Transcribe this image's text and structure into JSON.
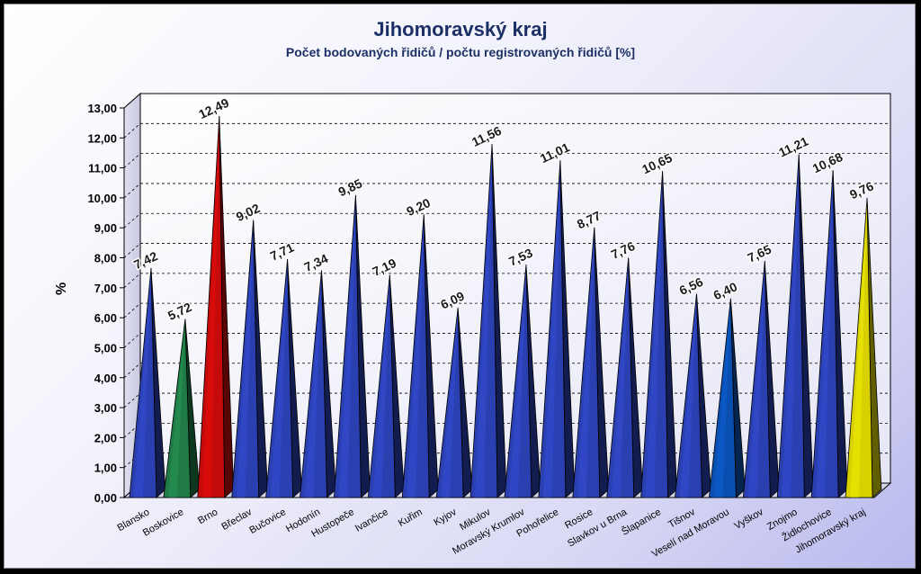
{
  "chart_data": {
    "type": "bar",
    "title": "Jihomoravský kraj",
    "subtitle": "Počet bodovaných řidičů / počtu registrovaných řidičů [%]",
    "ylabel": "%",
    "xlabel": "",
    "ylim": [
      0,
      13
    ],
    "yticks": [
      "0,00",
      "1,00",
      "2,00",
      "3,00",
      "4,00",
      "5,00",
      "6,00",
      "7,00",
      "8,00",
      "9,00",
      "10,00",
      "11,00",
      "12,00",
      "13,00"
    ],
    "grid": true,
    "categories": [
      "Blansko",
      "Boskovice",
      "Brno",
      "Břeclav",
      "Bučovice",
      "Hodonín",
      "Hustopeče",
      "Ivančice",
      "Kuřim",
      "Kyjov",
      "Mikulov",
      "Moravský Krumlov",
      "Pohořelice",
      "Rosice",
      "Slavkov u Brna",
      "Šlapanice",
      "Tišnov",
      "Veselí nad Moravou",
      "Vyškov",
      "Znojmo",
      "Židlochovice",
      "Jihomoravský kraj"
    ],
    "values": [
      7.42,
      5.72,
      12.49,
      9.02,
      7.71,
      7.34,
      9.85,
      7.19,
      9.2,
      6.09,
      11.56,
      7.53,
      11.01,
      8.77,
      7.76,
      10.65,
      6.56,
      6.4,
      7.65,
      11.21,
      10.68,
      9.76
    ],
    "value_labels": [
      "7,42",
      "5,72",
      "12,49",
      "9,02",
      "7,71",
      "7,34",
      "9,85",
      "7,19",
      "9,20",
      "6,09",
      "11,56",
      "7,53",
      "11,01",
      "8,77",
      "7,76",
      "10,65",
      "6,56",
      "6,40",
      "7,65",
      "11,21",
      "10,68",
      "9,76"
    ],
    "colors": [
      "#2a3fb0",
      "#1f7a45",
      "#c40a0a",
      "#2a3fb0",
      "#2a3fb0",
      "#2a3fb0",
      "#2a3fb0",
      "#2a3fb0",
      "#2a3fb0",
      "#2a3fb0",
      "#2a3fb0",
      "#2a3fb0",
      "#2a3fb0",
      "#2a3fb0",
      "#2a3fb0",
      "#2a3fb0",
      "#2a3fb0",
      "#0a4fb0",
      "#2a3fb0",
      "#2a3fb0",
      "#2a3fb0",
      "#d8d000"
    ]
  }
}
